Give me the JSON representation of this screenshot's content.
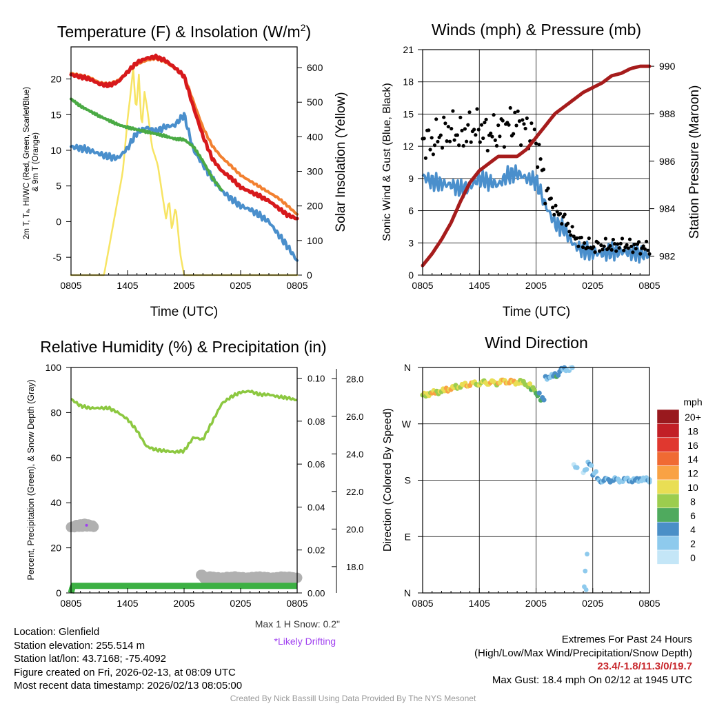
{
  "x_ticks": [
    "0805",
    "1405",
    "2005",
    "0205",
    "0805"
  ],
  "colors": {
    "t2m": "#d7191c",
    "t9m": "#f28030",
    "dewpoint": "#4aaa44",
    "wind": "#4a8fcc",
    "solar": "#f7e463",
    "gust": "#000000",
    "pressure": "#a61c1c",
    "rh": "#8cc840",
    "precip": "#3cb043",
    "snow": "#b0b0b0",
    "drift": "#a040f0"
  },
  "chart_data": [
    {
      "type": "line",
      "title": "Temperature (F) & Insolation (W/m²)",
      "xlabel": "Time (UTC)",
      "ylabel": "2m T, Tₐ, HI/WC (Red, Green, Scarlet/Blue) & 9m T (Orange)",
      "ylabel_line1": "2m T, Tₐ, HI/WC (Red, Green, Scarlet/Blue)",
      "ylabel_line2": "& 9m T (Orange)",
      "y2label": "Solar Insolation (Yellow)",
      "ylim": [
        -7.5,
        24.5
      ],
      "y2lim": [
        0,
        660
      ],
      "yticks": [
        -5,
        0,
        5,
        10,
        15,
        20
      ],
      "y2ticks": [
        0,
        100,
        200,
        300,
        400,
        500,
        600
      ],
      "x_hours": [
        0,
        24
      ],
      "series": [
        {
          "name": "2m T",
          "x": [
            0,
            1,
            2,
            3,
            4,
            5,
            6,
            7,
            8,
            9,
            10,
            11,
            12,
            13,
            14,
            15,
            16,
            17,
            18,
            19,
            20,
            21,
            22,
            23,
            24
          ],
          "values": [
            20.6,
            20.3,
            20,
            19.3,
            19.1,
            19.6,
            21,
            22.3,
            22.9,
            23.1,
            22.6,
            21.6,
            20.4,
            16,
            12,
            8.8,
            7.1,
            6.1,
            4.8,
            4.2,
            3.6,
            2.9,
            1.9,
            0.9,
            0.4
          ]
        },
        {
          "name": "9m T",
          "x": [
            0,
            1,
            2,
            3,
            4,
            5,
            6,
            7,
            8,
            9,
            10,
            11,
            12,
            13,
            14,
            15,
            16,
            17,
            18,
            19,
            20,
            21,
            22,
            23,
            24
          ],
          "values": [
            20.8,
            20.5,
            20.2,
            19.5,
            19.3,
            19.8,
            21,
            22.1,
            22.6,
            22.9,
            22.4,
            21.5,
            20.5,
            16.8,
            13.2,
            10.6,
            9,
            7.8,
            6.5,
            5.7,
            4.9,
            4.1,
            3.3,
            2.2,
            1
          ]
        },
        {
          "name": "Dewpoint",
          "x": [
            0,
            1,
            2,
            3,
            4,
            5,
            6,
            7,
            8,
            9,
            10,
            11,
            12,
            13,
            14,
            15,
            16
          ],
          "values": [
            17.2,
            16.2,
            15.5,
            14.8,
            14.2,
            13.6,
            13.2,
            12.9,
            12.6,
            12.3,
            12,
            11.6,
            11.5,
            10.5,
            8.5,
            6.1,
            4.4
          ]
        },
        {
          "name": "Wind Chill",
          "x": [
            0,
            1,
            2,
            3,
            4,
            5,
            6,
            7,
            8,
            9,
            10,
            11,
            12,
            13,
            14,
            15,
            16,
            17,
            18,
            19,
            20,
            21,
            22,
            23,
            24
          ],
          "values": [
            10.5,
            10.3,
            10,
            9.5,
            9.1,
            8.9,
            10.3,
            12.5,
            13.2,
            12.6,
            13.3,
            13.5,
            15,
            10,
            8,
            6.1,
            4.3,
            3.2,
            2.2,
            1.7,
            0.9,
            0,
            -1.8,
            -3.5,
            -5.5
          ]
        },
        {
          "name": "Solar Insolation",
          "axis": "right",
          "x": [
            0,
            3.5,
            4.5,
            5.5,
            6,
            6.3,
            6.6,
            6.9,
            7.2,
            7.5,
            7.8,
            8.1,
            8.6,
            9.2,
            10.1,
            10.4,
            10.7,
            11.1,
            11.6,
            12,
            24
          ],
          "values": [
            0,
            0,
            150,
            300,
            450,
            520,
            600,
            470,
            580,
            420,
            530,
            480,
            370,
            320,
            160,
            220,
            130,
            200,
            60,
            0,
            0
          ]
        }
      ]
    },
    {
      "type": "line",
      "title": "Winds (mph) & Pressure (mb)",
      "xlabel": "Time (UTC)",
      "ylabel": "Sonic Wind & Gust (Blue, Black)",
      "y2label": "Station Pressure (Maroon)",
      "ylim": [
        0,
        21
      ],
      "y2lim": [
        981.2,
        990.7
      ],
      "yticks": [
        0,
        3,
        6,
        9,
        12,
        15,
        18,
        21
      ],
      "y2ticks": [
        982,
        984,
        986,
        988,
        990
      ],
      "series": [
        {
          "name": "Sonic Wind",
          "x": [
            0,
            1,
            2,
            3,
            4,
            5,
            6,
            7,
            8,
            9,
            10,
            11,
            12,
            13,
            14,
            15,
            16,
            17,
            18,
            19,
            20,
            21,
            22,
            23,
            24
          ],
          "values": [
            9.2,
            8.7,
            8.5,
            8.4,
            8,
            8.2,
            9,
            8.7,
            8.4,
            9.3,
            9.5,
            9,
            8.8,
            6.5,
            4.8,
            4.3,
            2.8,
            2.3,
            2.1,
            2,
            2.2,
            2.2,
            2.1,
            2,
            1.8
          ]
        },
        {
          "name": "Gust",
          "x": [
            0,
            1,
            2,
            3,
            4,
            5,
            6,
            7,
            8,
            9,
            10,
            11,
            12,
            13,
            14,
            15,
            16,
            17,
            18,
            19,
            20,
            21,
            22,
            23,
            24
          ],
          "values": [
            12.7,
            12.3,
            13.2,
            13.6,
            13,
            13.6,
            13.7,
            13.1,
            13.3,
            14,
            14.3,
            13.5,
            12.5,
            8.2,
            6,
            5.2,
            3.6,
            2.9,
            2.6,
            2.7,
            2.7,
            2.8,
            2.7,
            2.6,
            2.5
          ]
        },
        {
          "name": "Station Pressure",
          "axis": "right",
          "x": [
            0,
            1,
            2,
            3,
            4,
            5,
            6,
            7,
            8,
            9,
            10,
            11,
            12,
            13,
            14,
            15,
            16,
            17,
            18,
            19,
            20,
            21,
            22,
            23,
            24
          ],
          "values": [
            981.6,
            982.1,
            982.7,
            983.4,
            984.3,
            985.1,
            985.6,
            985.9,
            986.2,
            986.2,
            986.2,
            986.5,
            987,
            987.5,
            988,
            988.3,
            988.6,
            988.9,
            989.1,
            989.3,
            989.6,
            989.7,
            989.9,
            990,
            990
          ]
        }
      ]
    },
    {
      "type": "line",
      "title": "Relative Humidity (%) & Precipitation (in)",
      "xlabel": "",
      "ylabel": "Percent, Precipitation (Green), & Snow Depth (Gray)",
      "ylim": [
        0,
        100
      ],
      "y2lim": [
        0,
        0.105
      ],
      "y3lim": [
        16.6,
        28.6
      ],
      "yticks": [
        0,
        20,
        40,
        60,
        80,
        100
      ],
      "y2ticks": [
        "0.00",
        "0.02",
        "0.04",
        "0.06",
        "0.08",
        "0.10"
      ],
      "y3ticks": [
        "18.0",
        "20.0",
        "22.0",
        "24.0",
        "26.0",
        "28.0"
      ],
      "series": [
        {
          "name": "Relative Humidity",
          "x": [
            0,
            1,
            2,
            3,
            4,
            5,
            6,
            7,
            8,
            9,
            10,
            11,
            12,
            13,
            14,
            15,
            16,
            17,
            18,
            19,
            20,
            21,
            22,
            23,
            24
          ],
          "values": [
            86,
            83,
            82,
            82,
            82,
            80,
            77,
            72,
            65,
            63.5,
            63,
            62.5,
            63,
            69,
            68,
            76,
            84,
            87,
            89,
            89.5,
            88,
            88,
            87,
            86.5,
            85.5
          ]
        },
        {
          "name": "Precipitation",
          "axis": "right",
          "x": [
            0,
            0.2,
            24
          ],
          "values": [
            0,
            0.0033,
            0.0033
          ]
        },
        {
          "name": "Snow Depth",
          "axis": "far-right",
          "x": [
            0,
            1,
            2,
            2.5,
            3,
            5.8,
            6.5,
            10.3,
            11,
            13.7,
            14.2,
            16,
            18,
            20,
            22,
            24
          ],
          "values": [
            20.1,
            20.2,
            20.2,
            20.1,
            null,
            19.6,
            null,
            16.9,
            null,
            17.6,
            17.4,
            17.4,
            17.4,
            17.4,
            17.4,
            17.4
          ]
        }
      ]
    },
    {
      "type": "scatter",
      "title": "Wind Direction",
      "xlabel": "",
      "ylabel": "Direction (Colored By Speed)",
      "yticks": [
        "N",
        "E",
        "S",
        "W",
        "N"
      ],
      "ylim": [
        0,
        360
      ],
      "legend_title": "mph",
      "legend_labels": [
        "20+",
        "18",
        "16",
        "14",
        "12",
        "10",
        "8",
        "6",
        "4",
        "2",
        "0"
      ],
      "legend_colors": [
        "#99191e",
        "#c21f26",
        "#e0382f",
        "#f06a33",
        "#f9a244",
        "#e9de54",
        "#9ccd4e",
        "#4faa5e",
        "#4a8fc7",
        "#8ecaed",
        "#c4e6f7"
      ],
      "points_x": [
        0,
        0.5,
        1,
        1.5,
        2,
        2.5,
        3,
        3.5,
        4,
        4.5,
        5,
        5.5,
        6,
        6.5,
        7,
        7.5,
        8,
        8.5,
        9,
        9.5,
        10,
        10.5,
        11,
        11.5,
        12,
        12.5,
        13,
        13.5,
        14,
        14.5,
        15,
        15.5,
        16,
        17,
        17.5,
        18,
        18.5,
        19,
        19.5,
        20,
        20.5,
        21,
        21.5,
        22,
        22.5,
        23,
        23.5,
        24
      ],
      "points_dir": [
        316,
        318,
        320,
        321,
        323,
        325,
        327,
        329,
        331,
        332,
        334,
        334,
        335,
        336,
        336,
        335,
        337,
        338,
        337,
        336,
        337,
        335,
        332,
        325,
        318,
        309,
        344,
        346,
        348,
        356,
        357,
        358,
        202,
        195,
        206,
        191,
        180,
        180,
        180,
        181,
        180,
        180,
        181,
        180,
        180,
        182,
        181,
        180
      ],
      "points_speed": [
        8,
        9,
        10,
        8,
        9,
        11,
        10,
        8,
        9,
        10,
        10,
        8,
        9,
        9,
        10,
        9,
        10,
        11,
        10,
        11,
        9,
        8,
        8,
        7,
        5,
        4,
        3,
        3,
        4,
        3,
        2,
        1,
        1,
        1,
        2,
        2,
        3,
        3,
        3,
        3,
        3,
        2,
        2,
        3,
        2,
        2,
        2,
        1
      ]
    }
  ],
  "info_left": {
    "location": "Location: Glenfield",
    "elevation": "Station elevation: 255.514 m",
    "latlon": "Station lat/lon: 43.7168; -75.4092",
    "created": "Figure created on Fri, 2026-02-13, at 08:09 UTC",
    "recent": "Most recent data timestamp: 2026/02/13 08:05:00"
  },
  "max_snow": "Max 1 H Snow: 0.2\"",
  "drifting": "*Likely Drifting",
  "extremes": {
    "title": "Extremes For Past 24 Hours",
    "subtitle": "(High/Low/Max Wind/Precipitation/Snow Depth)",
    "values": "23.4/-1.8/11.3/0/19.7",
    "max_gust": "Max Gust: 18.4 mph On 02/12 at 1945 UTC"
  },
  "credit": "Created By Nick Bassill Using Data Provided By The NYS Mesonet"
}
